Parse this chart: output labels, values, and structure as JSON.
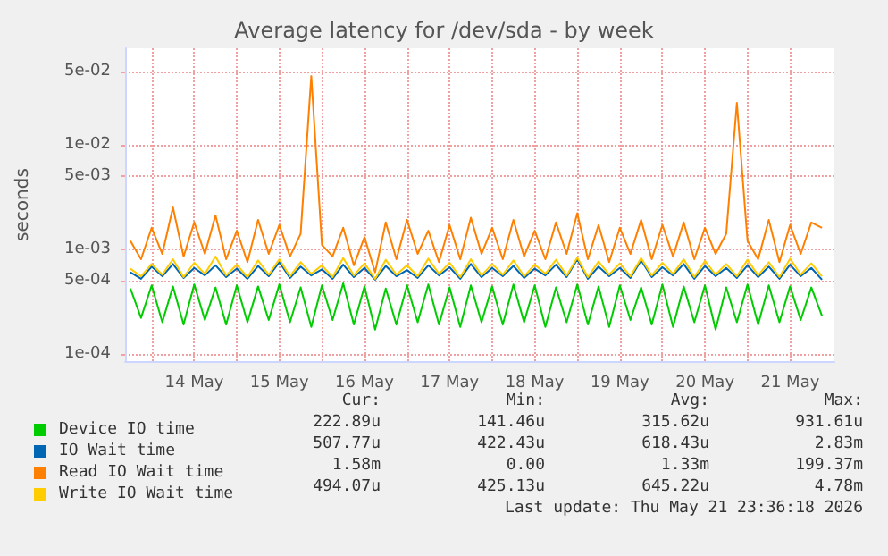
{
  "chart_data": {
    "type": "line",
    "title": "Average latency for /dev/sda - by week",
    "ylabel": "seconds",
    "log": "y",
    "grid": true,
    "legend": "bottom left",
    "marker": "none",
    "line_style": "solid",
    "xlim": [
      "2026-05-13T16:30",
      "2026-05-22T00:30"
    ],
    "xticks": [
      {
        "value": "2026-05-14T00:00",
        "label": null
      },
      {
        "value": "2026-05-14T12:00",
        "label": "14 May"
      },
      {
        "value": "2026-05-15T00:00",
        "label": null
      },
      {
        "value": "2026-05-15T12:00",
        "label": "15 May"
      },
      {
        "value": "2026-05-16T00:00",
        "label": null
      },
      {
        "value": "2026-05-16T12:00",
        "label": "16 May"
      },
      {
        "value": "2026-05-17T00:00",
        "label": null
      },
      {
        "value": "2026-05-17T12:00",
        "label": "17 May"
      },
      {
        "value": "2026-05-18T00:00",
        "label": null
      },
      {
        "value": "2026-05-18T12:00",
        "label": "18 May"
      },
      {
        "value": "2026-05-19T00:00",
        "label": null
      },
      {
        "value": "2026-05-19T12:00",
        "label": "19 May"
      },
      {
        "value": "2026-05-20T00:00",
        "label": null
      },
      {
        "value": "2026-05-20T12:00",
        "label": "20 May"
      },
      {
        "value": "2026-05-21T00:00",
        "label": null
      },
      {
        "value": "2026-05-21T12:00",
        "label": "21 May"
      }
    ],
    "ylim": [
      8.5e-05,
      0.083
    ],
    "yticks": [
      {
        "value": 0.0001,
        "label": "1e-04"
      },
      {
        "value": 0.0005,
        "label": "5e-04"
      },
      {
        "value": 0.001,
        "label": "1e-03"
      },
      {
        "value": 0.005,
        "label": "5e-03"
      },
      {
        "value": 0.01,
        "label": "1e-02"
      },
      {
        "value": 0.05,
        "label": "5e-02"
      }
    ],
    "x": [
      "2026-05-13T18:00",
      "2026-05-13T21:00",
      "2026-05-14T00:00",
      "2026-05-14T03:00",
      "2026-05-14T06:00",
      "2026-05-14T09:00",
      "2026-05-14T12:00",
      "2026-05-14T15:00",
      "2026-05-14T18:00",
      "2026-05-14T21:00",
      "2026-05-15T00:00",
      "2026-05-15T03:00",
      "2026-05-15T06:00",
      "2026-05-15T09:00",
      "2026-05-15T12:00",
      "2026-05-15T15:00",
      "2026-05-15T18:00",
      "2026-05-15T21:00",
      "2026-05-16T00:00",
      "2026-05-16T03:00",
      "2026-05-16T06:00",
      "2026-05-16T09:00",
      "2026-05-16T12:00",
      "2026-05-16T15:00",
      "2026-05-16T18:00",
      "2026-05-16T21:00",
      "2026-05-17T00:00",
      "2026-05-17T03:00",
      "2026-05-17T06:00",
      "2026-05-17T09:00",
      "2026-05-17T12:00",
      "2026-05-17T15:00",
      "2026-05-17T18:00",
      "2026-05-17T21:00",
      "2026-05-18T00:00",
      "2026-05-18T03:00",
      "2026-05-18T06:00",
      "2026-05-18T09:00",
      "2026-05-18T12:00",
      "2026-05-18T15:00",
      "2026-05-18T18:00",
      "2026-05-18T21:00",
      "2026-05-19T00:00",
      "2026-05-19T03:00",
      "2026-05-19T06:00",
      "2026-05-19T09:00",
      "2026-05-19T12:00",
      "2026-05-19T15:00",
      "2026-05-19T18:00",
      "2026-05-19T21:00",
      "2026-05-20T00:00",
      "2026-05-20T03:00",
      "2026-05-20T06:00",
      "2026-05-20T09:00",
      "2026-05-20T12:00",
      "2026-05-20T15:00",
      "2026-05-20T18:00",
      "2026-05-20T21:00",
      "2026-05-21T00:00",
      "2026-05-21T03:00",
      "2026-05-21T06:00",
      "2026-05-21T09:00",
      "2026-05-21T12:00",
      "2026-05-21T15:00",
      "2026-05-21T18:00",
      "2026-05-21T21:00"
    ],
    "series": [
      {
        "name": "Device IO time",
        "color": "#00cc00",
        "values": [
          0.00042,
          0.00022,
          0.00045,
          0.0002,
          0.00044,
          0.00019,
          0.00046,
          0.00021,
          0.00043,
          0.00019,
          0.00045,
          0.0002,
          0.00044,
          0.00021,
          0.00046,
          0.0002,
          0.00043,
          0.00018,
          0.00045,
          0.00021,
          0.00047,
          0.00019,
          0.00044,
          0.00017,
          0.00042,
          0.00019,
          0.00045,
          0.0002,
          0.00046,
          0.00019,
          0.00043,
          0.00018,
          0.00045,
          0.0002,
          0.00044,
          0.00019,
          0.00046,
          0.0002,
          0.00045,
          0.00018,
          0.00043,
          0.0002,
          0.00046,
          0.00019,
          0.00044,
          0.00018,
          0.00045,
          0.00021,
          0.00043,
          0.00019,
          0.00046,
          0.00018,
          0.00044,
          0.0002,
          0.00045,
          0.00017,
          0.00043,
          0.0002,
          0.00046,
          0.00019,
          0.00045,
          0.0002,
          0.00044,
          0.00021,
          0.00043,
          0.00023
        ]
      },
      {
        "name": "IO Wait time",
        "color": "#0066b3",
        "values": [
          0.0006,
          0.00052,
          0.00068,
          0.00055,
          0.00072,
          0.00053,
          0.00066,
          0.00056,
          0.0007,
          0.00054,
          0.00065,
          0.00052,
          0.00069,
          0.00055,
          0.00075,
          0.00053,
          0.00068,
          0.00056,
          0.00064,
          0.00052,
          0.00071,
          0.00054,
          0.00066,
          0.00051,
          0.00069,
          0.00055,
          0.00063,
          0.00053,
          0.0007,
          0.00056,
          0.00067,
          0.00052,
          0.00072,
          0.00054,
          0.00066,
          0.00055,
          0.00069,
          0.00053,
          0.00065,
          0.00056,
          0.00071,
          0.00054,
          0.0008,
          0.00052,
          0.00068,
          0.00055,
          0.00066,
          0.00053,
          0.00078,
          0.00054,
          0.00067,
          0.00056,
          0.00072,
          0.00052,
          0.00069,
          0.00055,
          0.00066,
          0.00053,
          0.0007,
          0.00054,
          0.00068,
          0.00052,
          0.00071,
          0.00055,
          0.00066,
          0.00051
        ]
      },
      {
        "name": "Read IO Wait time",
        "color": "#ff8000",
        "values": [
          0.0012,
          0.0008,
          0.0016,
          0.0009,
          0.0025,
          0.00085,
          0.0018,
          0.0009,
          0.0021,
          0.0008,
          0.0015,
          0.00075,
          0.0019,
          0.0009,
          0.0017,
          0.00085,
          0.0014,
          0.045,
          0.0011,
          0.00085,
          0.0016,
          0.0007,
          0.0013,
          0.0006,
          0.0018,
          0.0008,
          0.0019,
          0.0009,
          0.0015,
          0.00075,
          0.0017,
          0.0008,
          0.002,
          0.0009,
          0.0016,
          0.0008,
          0.0019,
          0.00085,
          0.0015,
          0.0008,
          0.0018,
          0.0009,
          0.0022,
          0.0008,
          0.0017,
          0.00075,
          0.0016,
          0.0009,
          0.0019,
          0.0008,
          0.0017,
          0.00085,
          0.0018,
          0.0008,
          0.0016,
          0.0009,
          0.0014,
          0.025,
          0.0012,
          0.0008,
          0.0019,
          0.00075,
          0.0017,
          0.0009,
          0.0018,
          0.0016
        ]
      },
      {
        "name": "Write IO Wait time",
        "color": "#ffcc00",
        "values": [
          0.00065,
          0.00055,
          0.00072,
          0.00057,
          0.0008,
          0.00054,
          0.00074,
          0.00058,
          0.00085,
          0.00056,
          0.00071,
          0.00054,
          0.00078,
          0.00057,
          0.0008,
          0.00055,
          0.00075,
          0.00058,
          0.0007,
          0.00054,
          0.00082,
          0.00056,
          0.00073,
          0.00052,
          0.00079,
          0.00057,
          0.0007,
          0.00055,
          0.00081,
          0.00058,
          0.00074,
          0.00054,
          0.0008,
          0.00056,
          0.00072,
          0.00057,
          0.00078,
          0.00055,
          0.00071,
          0.00058,
          0.00079,
          0.00056,
          0.00083,
          0.00054,
          0.00076,
          0.00057,
          0.00073,
          0.00055,
          0.00082,
          0.00056,
          0.00074,
          0.00058,
          0.0008,
          0.00054,
          0.00077,
          0.00057,
          0.00072,
          0.00055,
          0.00079,
          0.00056,
          0.00075,
          0.00054,
          0.00081,
          0.00057,
          0.00073,
          0.00055
        ]
      }
    ],
    "annotations": [
      "Cur:",
      "Min:",
      "Avg:",
      "Max:",
      "222.89u",
      "141.46u",
      "315.62u",
      "931.61u",
      "507.77u",
      "422.43u",
      "618.43u",
      "2.83m",
      "1.58m",
      "0.00",
      "1.33m",
      "199.37m",
      "494.07u",
      "425.13u",
      "645.22u",
      "4.78m",
      "Last update: Thu May 21 23:36:18 2026"
    ]
  }
}
